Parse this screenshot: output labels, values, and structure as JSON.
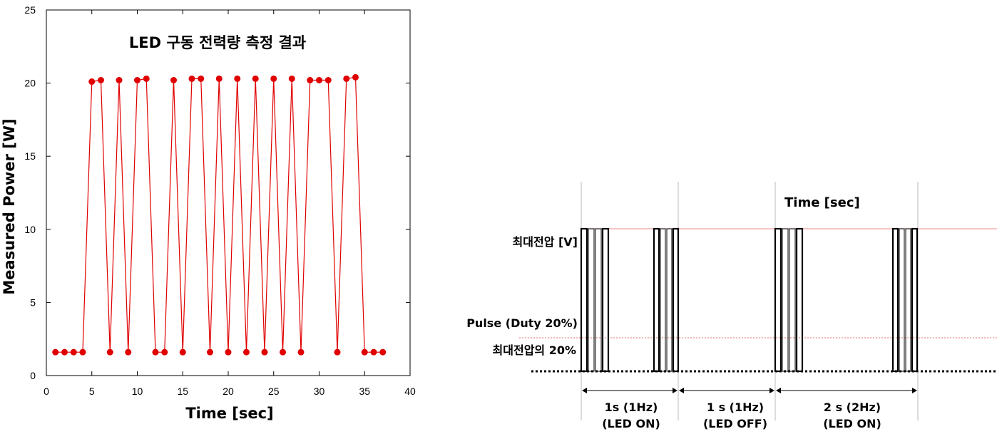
{
  "chart_data": {
    "type": "line",
    "title": "LED 구동  전력량 측정 결과",
    "xlabel": "Time [sec]",
    "ylabel": "Measured Power [W]",
    "xlim": [
      0,
      40
    ],
    "ylim": [
      0,
      25
    ],
    "x_ticks": [
      "0",
      "5",
      "10",
      "15",
      "20",
      "25",
      "30",
      "35",
      "40"
    ],
    "y_ticks": [
      "0",
      "5",
      "10",
      "15",
      "20",
      "25"
    ],
    "grid": false,
    "series_color": "#e00000",
    "series": [
      {
        "x": [
          1,
          2,
          3,
          4,
          5,
          6,
          7,
          8,
          9,
          10,
          11,
          12,
          13,
          14,
          15,
          16,
          17,
          18,
          19,
          20,
          21,
          22,
          23,
          24,
          25,
          26,
          27,
          28,
          29,
          30,
          31,
          32,
          33,
          34,
          35,
          36,
          37
        ],
        "y": [
          1.6,
          1.6,
          1.6,
          1.6,
          20.1,
          20.2,
          1.6,
          20.2,
          1.6,
          20.2,
          20.3,
          1.6,
          1.6,
          20.2,
          1.6,
          20.3,
          20.3,
          1.6,
          20.3,
          1.6,
          20.3,
          1.6,
          20.3,
          1.6,
          20.3,
          1.6,
          20.3,
          1.6,
          20.2,
          20.2,
          20.2,
          1.6,
          20.3,
          20.4,
          1.6,
          1.6,
          1.6
        ]
      }
    ]
  },
  "diagram": {
    "time_label": "Time [sec]",
    "max_voltage_label": "최대전압 [V]",
    "pulse_label": "Pulse (Duty 20%)",
    "pulse_level_label": "최대전압의 20%",
    "segments": [
      {
        "label": "1s (1Hz)",
        "sublabel": "(LED ON)"
      },
      {
        "label": "1 s (1Hz)",
        "sublabel": "(LED OFF)"
      },
      {
        "label": "2 s (2Hz)",
        "sublabel": "(LED ON)"
      }
    ],
    "max_line_color": "#f4a0a0",
    "pulse_line_color": "#e04040"
  }
}
